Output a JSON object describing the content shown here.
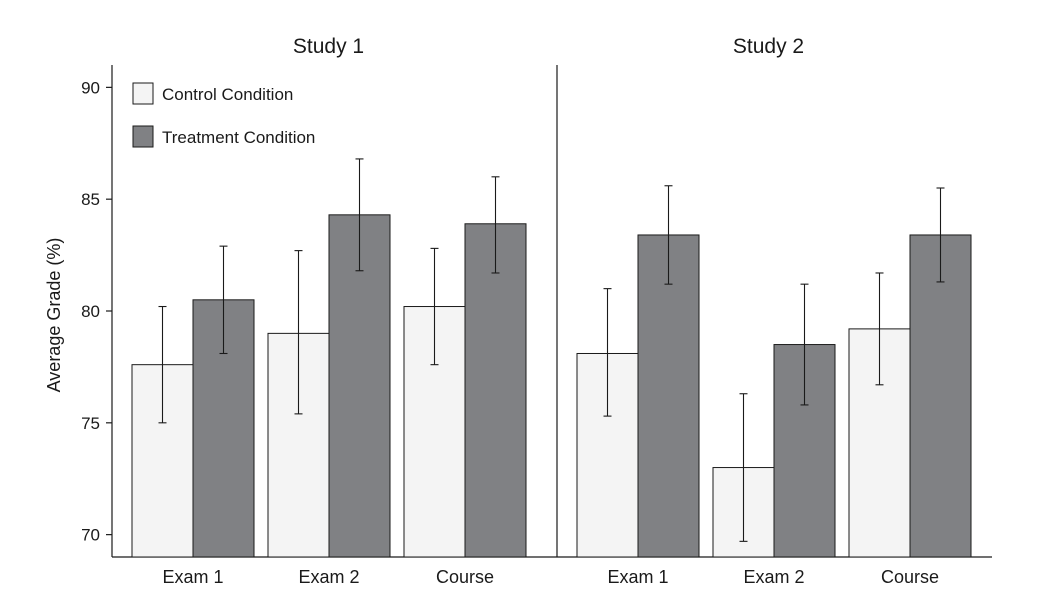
{
  "chart_data": {
    "type": "bar",
    "ylabel": "Average Grade (%)",
    "ylim": [
      69,
      91
    ],
    "yticks": [
      70,
      75,
      80,
      85,
      90
    ],
    "legend": {
      "placement": "top-left",
      "entries": [
        {
          "name": "Control Condition",
          "color": "#f4f4f4"
        },
        {
          "name": "Treatment Condition",
          "color": "#808184"
        }
      ]
    },
    "panels": [
      {
        "title": "Study 1",
        "categories": [
          "Exam 1",
          "Exam 2",
          "Course"
        ],
        "series": [
          {
            "name": "Control Condition",
            "values": [
              77.6,
              79.0,
              80.2
            ],
            "err_low": [
              75.0,
              75.4,
              77.6
            ],
            "err_high": [
              80.2,
              82.7,
              82.8
            ]
          },
          {
            "name": "Treatment Condition",
            "values": [
              80.5,
              84.3,
              83.9
            ],
            "err_low": [
              78.1,
              81.8,
              81.7
            ],
            "err_high": [
              82.9,
              86.8,
              86.0
            ]
          }
        ]
      },
      {
        "title": "Study 2",
        "categories": [
          "Exam 1",
          "Exam 2",
          "Course"
        ],
        "series": [
          {
            "name": "Control Condition",
            "values": [
              78.1,
              73.0,
              79.2
            ],
            "err_low": [
              75.3,
              69.7,
              76.7
            ],
            "err_high": [
              81.0,
              76.3,
              81.7
            ]
          },
          {
            "name": "Treatment Condition",
            "values": [
              83.4,
              78.5,
              83.4
            ],
            "err_low": [
              81.2,
              75.8,
              81.3
            ],
            "err_high": [
              85.6,
              81.2,
              85.5
            ]
          }
        ]
      }
    ]
  }
}
